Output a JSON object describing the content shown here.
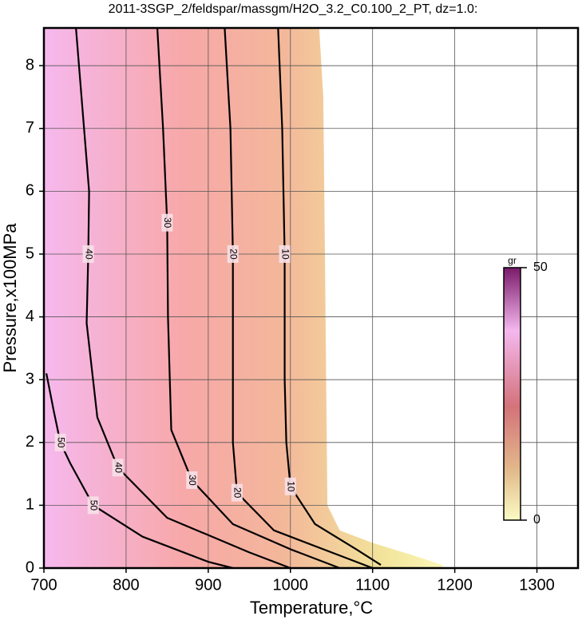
{
  "chart_data": {
    "type": "contour",
    "title": "2011-3SGP_2/feldspar/massgm/H2O_3.2_C0.100_2_PT, dz=1.0:",
    "x_label": "Temperature,°C",
    "y_label": "Pressure,x100MPa",
    "xlim": [
      700,
      1350
    ],
    "ylim": [
      0,
      8.6
    ],
    "xticks": [
      700,
      800,
      900,
      1000,
      1100,
      1200,
      1300
    ],
    "yticks": [
      0,
      1,
      2,
      3,
      4,
      5,
      6,
      7,
      8
    ],
    "grid": true,
    "field_extent": {
      "x": [
        700,
        1035,
        1040,
        1042,
        1045,
        1060,
        1100,
        1150,
        1185,
        1185,
        700
      ],
      "y": [
        8.6,
        8.6,
        7.5,
        5,
        1,
        0.6,
        0.4,
        0.2,
        0.05,
        0,
        0
      ]
    },
    "contours": [
      {
        "level": 10,
        "x": [
          985,
          990,
          993,
          993,
          995,
          1000,
          1030,
          1080,
          1110
        ],
        "y": [
          8.6,
          7,
          5,
          3,
          2,
          1.3,
          0.7,
          0.3,
          0.05
        ]
      },
      {
        "level": 20,
        "x": [
          920,
          927,
          930,
          930,
          930,
          935,
          980,
          1050,
          1100
        ],
        "y": [
          8.6,
          7,
          5,
          3,
          2,
          1.2,
          0.6,
          0.25,
          0
        ]
      },
      {
        "level": 30,
        "x": [
          838,
          845,
          850,
          851,
          855,
          880,
          930,
          1000,
          1060
        ],
        "y": [
          8.6,
          7,
          5.5,
          4,
          2.2,
          1.4,
          0.7,
          0.3,
          0
        ]
      },
      {
        "level": 40,
        "x": [
          739,
          755,
          754,
          752,
          765,
          790,
          850,
          950,
          1000
        ],
        "y": [
          8.6,
          6,
          5,
          3.9,
          2.4,
          1.6,
          0.8,
          0.25,
          0
        ]
      },
      {
        "level": 50,
        "x": [
          703,
          712,
          720,
          732,
          760,
          820,
          900,
          930
        ],
        "y": [
          3.1,
          2.5,
          2.0,
          1.67,
          1.0,
          0.5,
          0.1,
          0
        ]
      }
    ],
    "colorbar": {
      "label": "gr",
      "lim": [
        0,
        50
      ],
      "ticks": [
        0,
        50
      ]
    }
  }
}
